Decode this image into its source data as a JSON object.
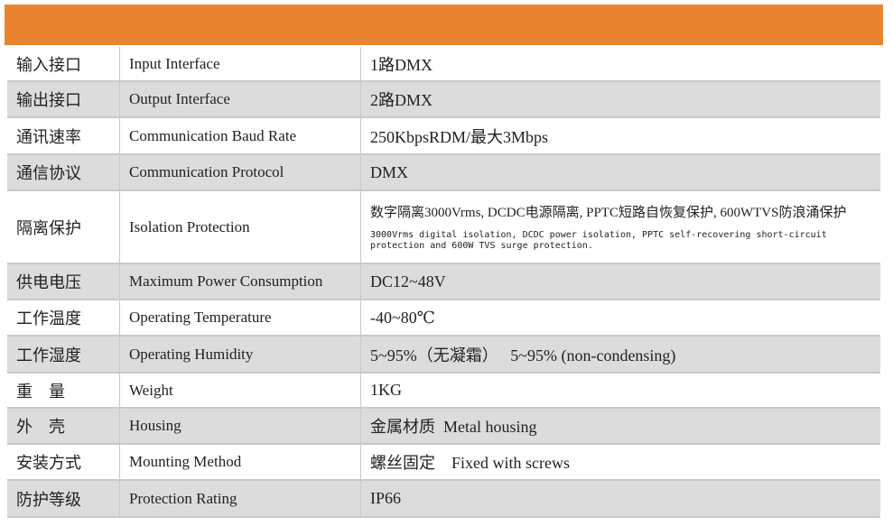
{
  "table": {
    "rows": [
      [
        "输入接口",
        "Input Interface",
        "1路DMX"
      ],
      [
        "输出接口",
        "Output Interface",
        "2路DMX"
      ],
      [
        "通讯速率",
        "Communication Baud Rate",
        "250KbpsRDM/最大3Mbps"
      ],
      [
        "通信协议",
        "Communication Protocol",
        "DMX"
      ],
      [
        "隔离保护",
        "Isolation Protection",
        "数字隔离3000Vrms, DCDC电源隔离, PPTC短路自恢复保护, 600WTVS防浪涌保护",
        "3000Vrms digital isolation, DCDC power isolation, PPTC self-recovering short-circuit protection and 600W TVS surge protection."
      ],
      [
        "供电电压",
        "Maximum Power Consumption",
        "DC12~48V"
      ],
      [
        "工作温度",
        "Operating Temperature",
        "-40~80℃"
      ],
      [
        "工作湿度",
        "Operating Humidity",
        "5~95%（无凝霜）   5~95% (non-condensing)"
      ],
      [
        "重　量",
        "Weight",
        "1KG"
      ],
      [
        "外　壳",
        "Housing",
        "金属材质  Metal housing"
      ],
      [
        "安装方式",
        "Mounting Method",
        "螺丝固定    Fixed with screws"
      ],
      [
        "防护等级",
        "Protection Rating",
        "IP66"
      ]
    ]
  }
}
